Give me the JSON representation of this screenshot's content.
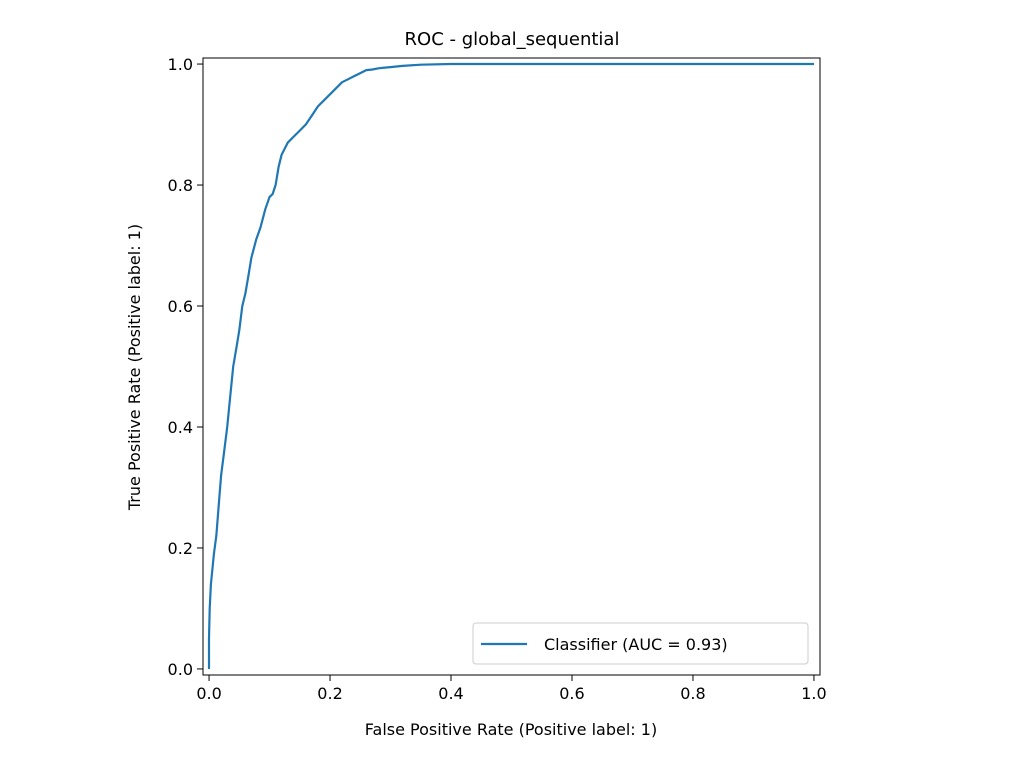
{
  "chart_data": {
    "type": "line",
    "title": "ROC - global_sequential",
    "xlabel": "False Positive Rate (Positive label: 1)",
    "ylabel": "True Positive Rate (Positive label: 1)",
    "xlim": [
      -0.01,
      1.01
    ],
    "ylim": [
      -0.01,
      1.01
    ],
    "xticks": [
      0.0,
      0.2,
      0.4,
      0.6,
      0.8,
      1.0
    ],
    "xtick_labels": [
      "0.0",
      "0.2",
      "0.4",
      "0.6",
      "0.8",
      "1.0"
    ],
    "yticks": [
      0.0,
      0.2,
      0.4,
      0.6,
      0.8,
      1.0
    ],
    "ytick_labels": [
      "0.0",
      "0.2",
      "0.4",
      "0.6",
      "0.8",
      "1.0"
    ],
    "grid": false,
    "legend_position": "lower-right",
    "series": [
      {
        "name": "Classifier (AUC = 0.93)",
        "color": "#1f77b4",
        "x": [
          0.0,
          0.0,
          0.001,
          0.003,
          0.005,
          0.008,
          0.012,
          0.016,
          0.02,
          0.025,
          0.03,
          0.035,
          0.04,
          0.045,
          0.05,
          0.055,
          0.06,
          0.065,
          0.07,
          0.078,
          0.085,
          0.093,
          0.1,
          0.105,
          0.11,
          0.115,
          0.12,
          0.13,
          0.14,
          0.15,
          0.16,
          0.17,
          0.18,
          0.19,
          0.2,
          0.21,
          0.22,
          0.23,
          0.24,
          0.25,
          0.26,
          0.27,
          0.28,
          0.3,
          0.32,
          0.35,
          0.4,
          0.5,
          0.6,
          0.7,
          0.8,
          0.9,
          1.0
        ],
        "y": [
          0.0,
          0.05,
          0.1,
          0.14,
          0.16,
          0.19,
          0.22,
          0.27,
          0.32,
          0.36,
          0.4,
          0.45,
          0.5,
          0.53,
          0.56,
          0.6,
          0.62,
          0.65,
          0.68,
          0.71,
          0.73,
          0.76,
          0.78,
          0.785,
          0.8,
          0.83,
          0.85,
          0.87,
          0.88,
          0.89,
          0.9,
          0.915,
          0.93,
          0.94,
          0.95,
          0.96,
          0.97,
          0.975,
          0.98,
          0.985,
          0.99,
          0.991,
          0.993,
          0.995,
          0.997,
          0.999,
          1.0,
          1.0,
          1.0,
          1.0,
          1.0,
          1.0,
          1.0
        ]
      }
    ]
  }
}
